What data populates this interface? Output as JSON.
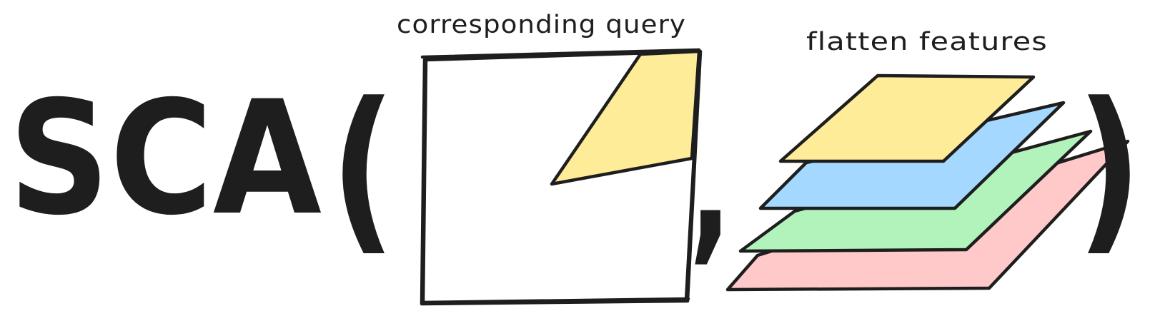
{
  "formula": {
    "function_name": "SCA",
    "open_paren": "(",
    "comma": ",",
    "close_paren": ")"
  },
  "labels": {
    "query": "corresponding query",
    "features": "flatten features"
  },
  "colors": {
    "ink": "#1e1e1e",
    "query_fill": "#ffec99",
    "layer_fills": [
      "#ffc9c9",
      "#b2f2bb",
      "#a5d8ff",
      "#ffec99"
    ]
  }
}
